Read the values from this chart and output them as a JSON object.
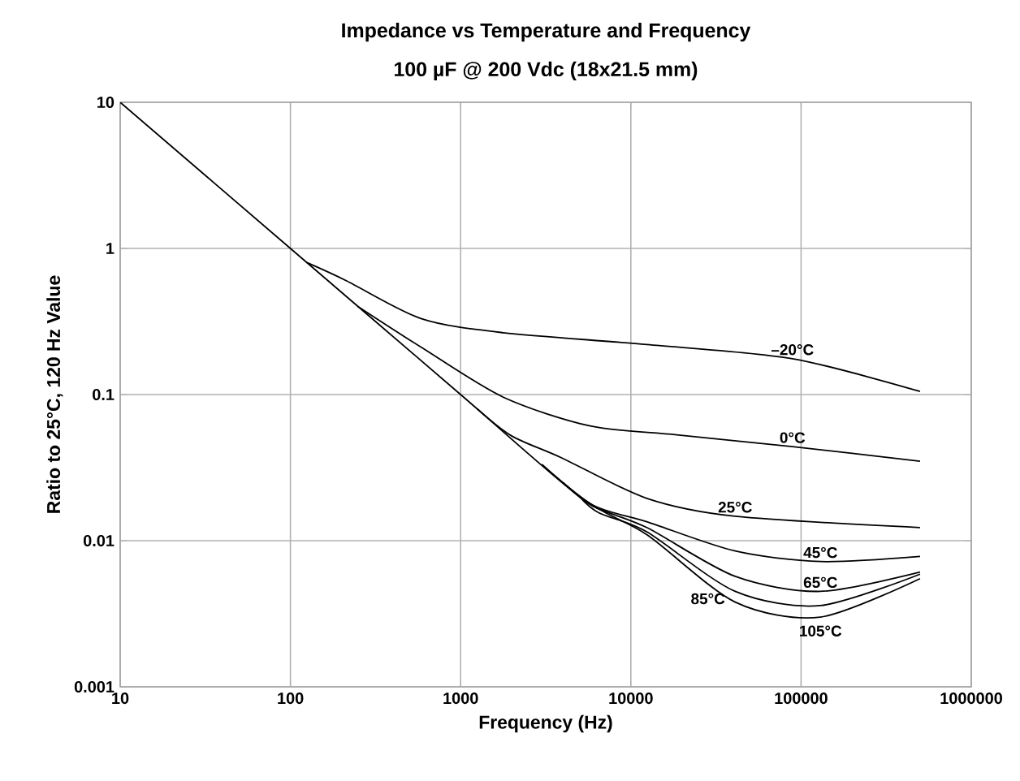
{
  "chart_data": {
    "type": "line",
    "title": "Impedance vs Temperature and Frequency",
    "subtitle": "100 µF @ 200 Vdc (18x21.5 mm)",
    "xlabel": "Frequency (Hz)",
    "ylabel": "Ratio to 25°C, 120 Hz Value",
    "log": "xy",
    "grid": true,
    "legend": false,
    "marker": "none",
    "line_style": "solid",
    "xlim": [
      10,
      1000000
    ],
    "ylim": [
      0.001,
      10
    ],
    "xticks": [
      10,
      100,
      1000,
      10000,
      100000,
      1000000
    ],
    "yticks": [
      0.001,
      0.01,
      0.1,
      1,
      10
    ],
    "series": [
      {
        "name": "–20°C",
        "color": "#000000",
        "x": [
          125,
          214,
          590,
          1780,
          12400,
          89000,
          500000
        ],
        "values": [
          0.8,
          0.6,
          0.33,
          0.265,
          0.22,
          0.176,
          0.105
        ]
      },
      {
        "name": "0°C",
        "color": "#000000",
        "x": [
          250,
          590,
          1780,
          5760,
          18600,
          89000,
          500000
        ],
        "values": [
          0.4,
          0.21,
          0.096,
          0.061,
          0.053,
          0.044,
          0.035
        ]
      },
      {
        "name": "25°C",
        "color": "#000000",
        "x": [
          1250,
          2000,
          3900,
          12400,
          41000,
          500000
        ],
        "values": [
          0.08,
          0.052,
          0.037,
          0.0195,
          0.0147,
          0.0123
        ]
      },
      {
        "name": "45°C",
        "color": "#000000",
        "x": [
          3000,
          6000,
          12400,
          41000,
          130000,
          500000
        ],
        "values": [
          0.0333,
          0.0175,
          0.0135,
          0.0085,
          0.0072,
          0.0078
        ]
      },
      {
        "name": "65°C",
        "color": "#000000",
        "x": [
          4000,
          6000,
          12400,
          41000,
          130000,
          500000
        ],
        "values": [
          0.025,
          0.0172,
          0.0123,
          0.0057,
          0.0045,
          0.0061
        ]
      },
      {
        "name": "85°C",
        "color": "#000000",
        "x": [
          5000,
          6500,
          12400,
          41000,
          130000,
          500000
        ],
        "values": [
          0.02,
          0.0155,
          0.0115,
          0.0045,
          0.0036,
          0.0059
        ]
      },
      {
        "name": "105°C",
        "color": "#000000",
        "x": [
          10,
          100,
          1000,
          5000,
          12400,
          41000,
          130000,
          500000
        ],
        "values": [
          10,
          1,
          0.1,
          0.02,
          0.011,
          0.0038,
          0.003,
          0.0055
        ]
      }
    ]
  }
}
